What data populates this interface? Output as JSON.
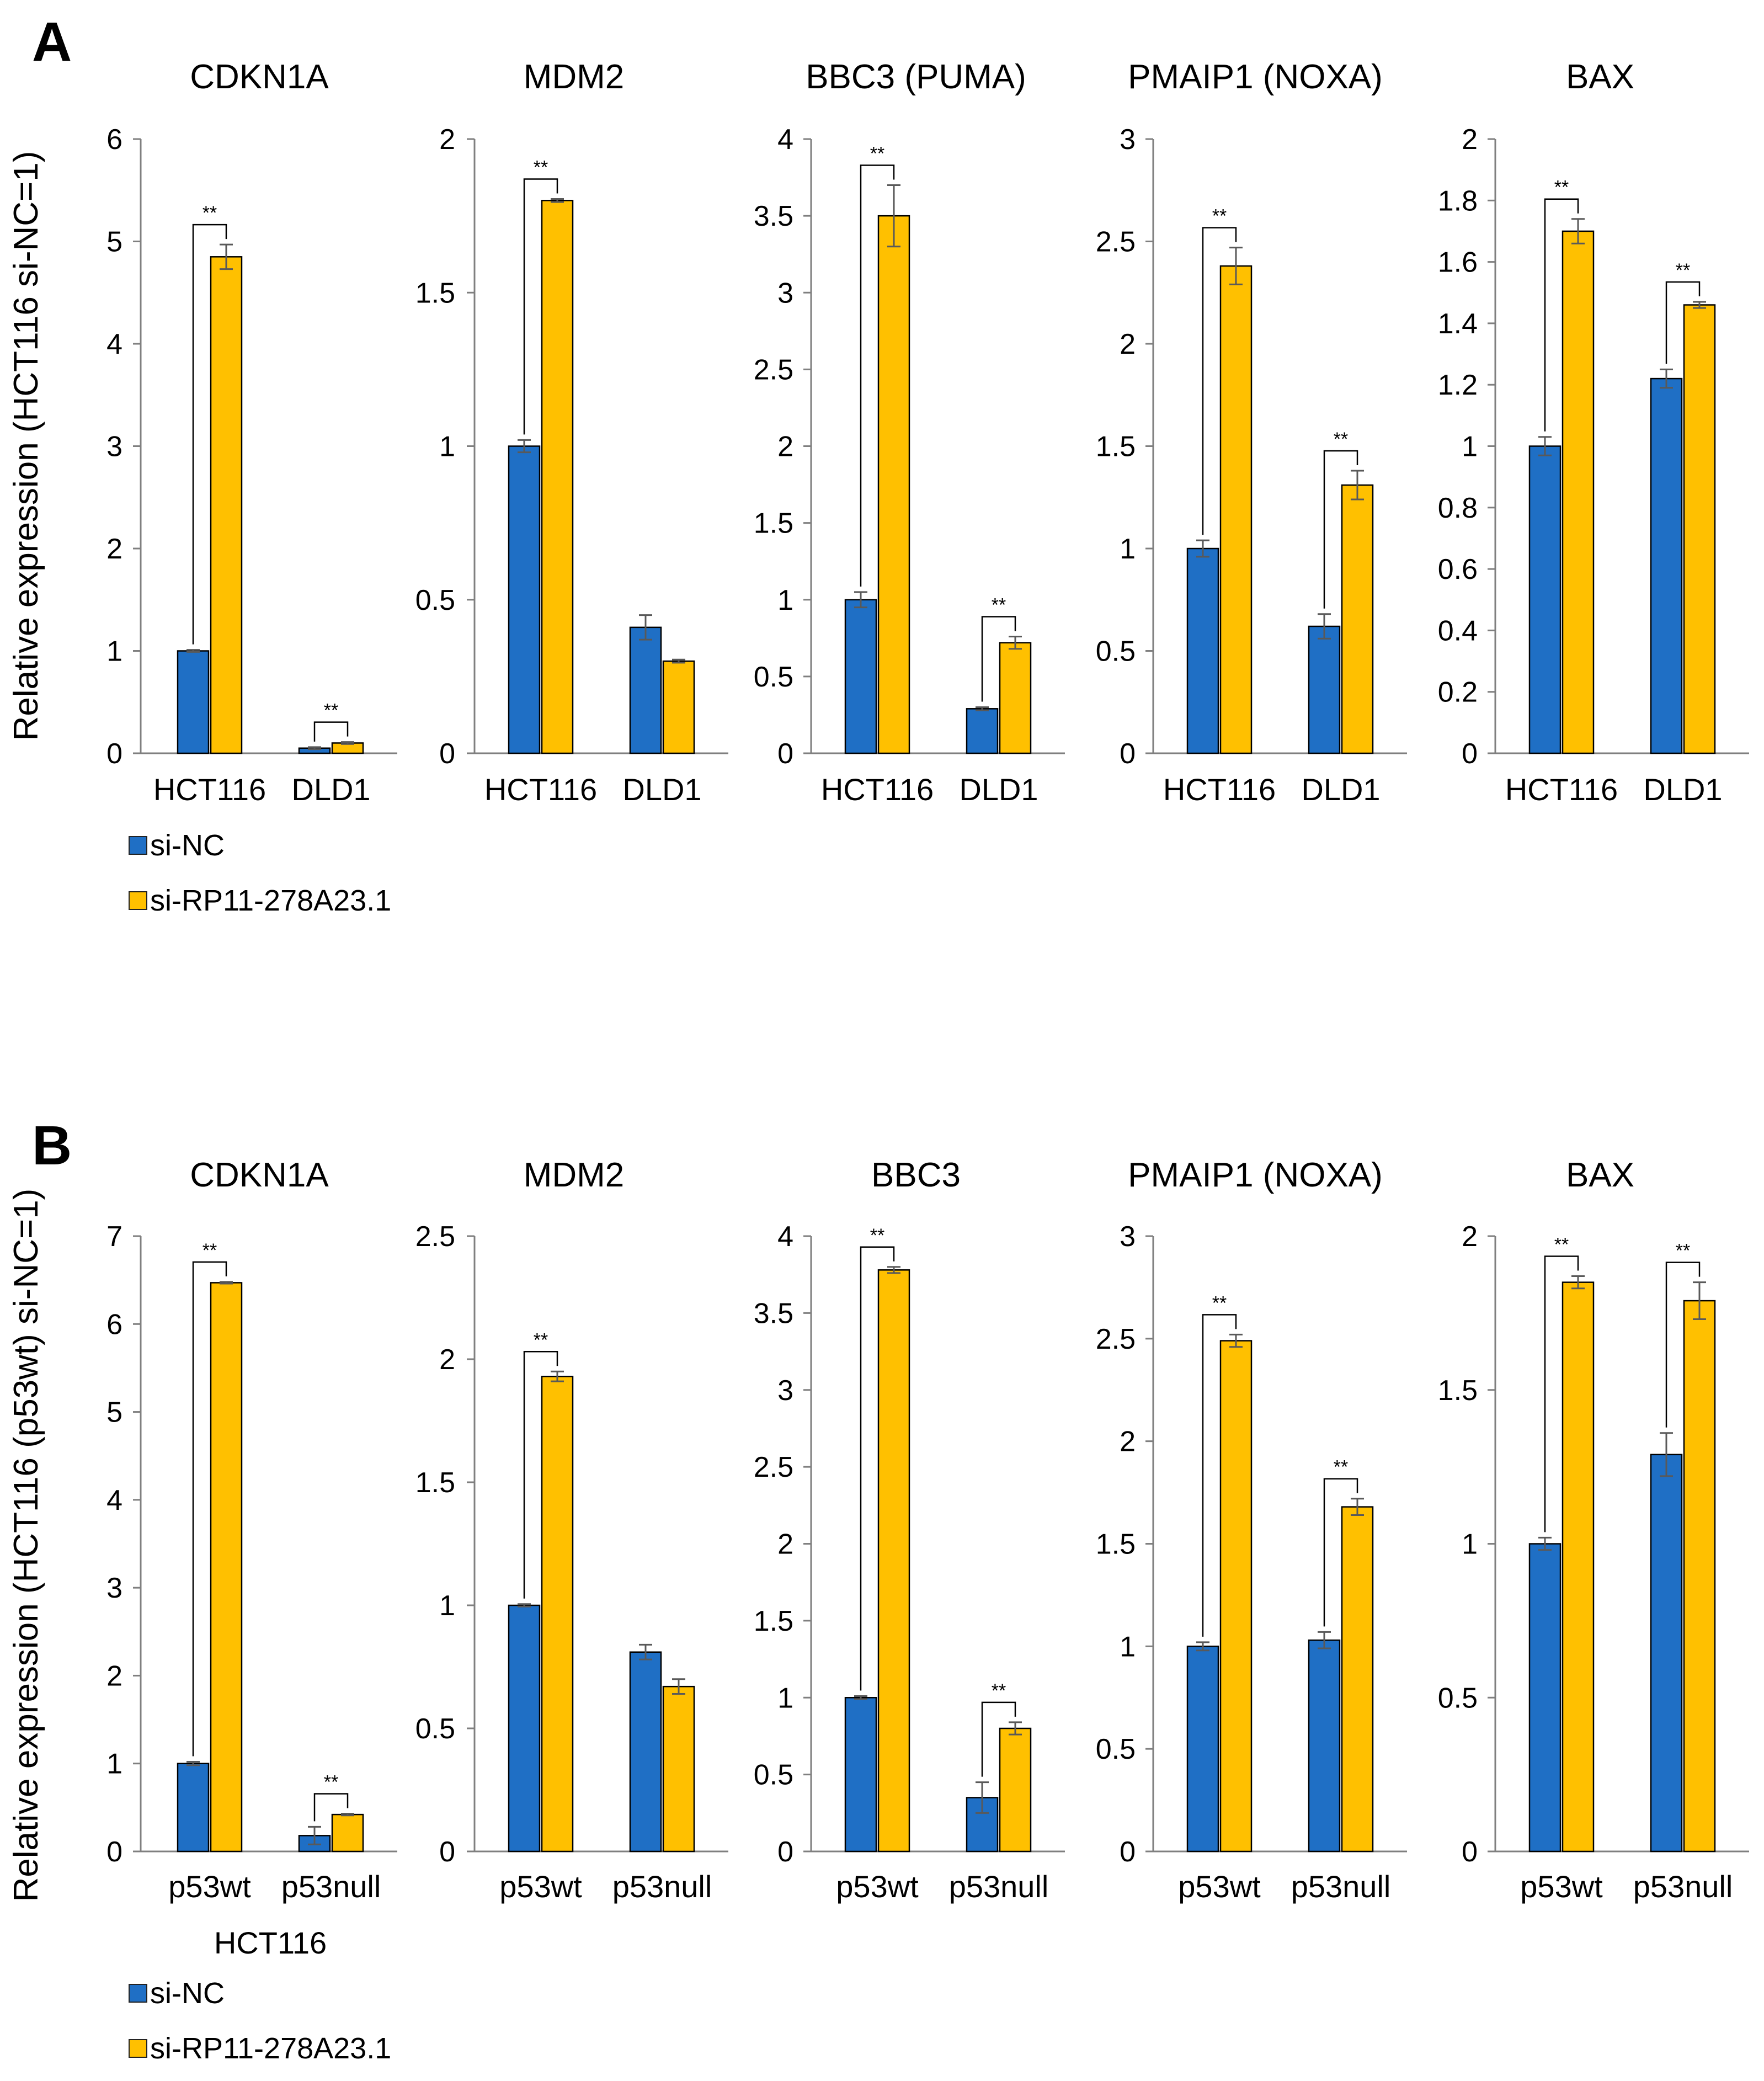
{
  "figure": {
    "panels": [
      {
        "letter": "A",
        "ylabel": "Relative expression (HCT116 si-NC=1)",
        "xsublabel": "",
        "legend": [
          {
            "label": "si-NC",
            "color": "#1f6fc5"
          },
          {
            "label": "si-RP11-278A23.1",
            "color": "#ffc000"
          }
        ]
      },
      {
        "letter": "B",
        "ylabel": "Relative expression (HCT116 (p53wt) si-NC=1)",
        "xsublabel": "HCT116",
        "legend": [
          {
            "label": "si-NC",
            "color": "#1f6fc5"
          },
          {
            "label": "si-RP11-278A23.1",
            "color": "#ffc000"
          }
        ]
      }
    ]
  },
  "chart_data": [
    {
      "panel": "A",
      "type": "bar",
      "title": "CDKN1A",
      "categories": [
        "HCT116",
        "DLD1"
      ],
      "ylim": [
        0,
        6
      ],
      "yticks": [
        "0",
        "1",
        "2",
        "3",
        "4",
        "5",
        "6"
      ],
      "series": [
        {
          "name": "si-NC",
          "values": [
            1.0,
            0.05
          ],
          "errors": [
            0.01,
            0.01
          ]
        },
        {
          "name": "si-RP11-278A23.1",
          "values": [
            4.85,
            0.1
          ],
          "errors": [
            0.12,
            0.01
          ]
        }
      ],
      "significance": [
        {
          "category": 0,
          "label": "**"
        },
        {
          "category": 1,
          "label": "**"
        }
      ]
    },
    {
      "panel": "A",
      "type": "bar",
      "title": "MDM2",
      "categories": [
        "HCT116",
        "DLD1"
      ],
      "ylim": [
        0,
        2
      ],
      "yticks": [
        "0",
        "0.5",
        "1",
        "1.5",
        "2"
      ],
      "series": [
        {
          "name": "si-NC",
          "values": [
            1.0,
            0.41
          ],
          "errors": [
            0.02,
            0.04
          ]
        },
        {
          "name": "si-RP11-278A23.1",
          "values": [
            1.8,
            0.3
          ],
          "errors": [
            0.005,
            0.005
          ]
        }
      ],
      "significance": [
        {
          "category": 0,
          "label": "**"
        }
      ]
    },
    {
      "panel": "A",
      "type": "bar",
      "title": "BBC3 (PUMA)",
      "categories": [
        "HCT116",
        "DLD1"
      ],
      "ylim": [
        0,
        4
      ],
      "yticks": [
        "0",
        "0.5",
        "1",
        "1.5",
        "2",
        "2.5",
        "3",
        "3.5",
        "4"
      ],
      "series": [
        {
          "name": "si-NC",
          "values": [
            1.0,
            0.29
          ],
          "errors": [
            0.05,
            0.01
          ]
        },
        {
          "name": "si-RP11-278A23.1",
          "values": [
            3.5,
            0.72
          ],
          "errors": [
            0.2,
            0.04
          ]
        }
      ],
      "significance": [
        {
          "category": 0,
          "label": "**"
        },
        {
          "category": 1,
          "label": "**"
        }
      ]
    },
    {
      "panel": "A",
      "type": "bar",
      "title": "PMAIP1 (NOXA)",
      "categories": [
        "HCT116",
        "DLD1"
      ],
      "ylim": [
        0,
        3
      ],
      "yticks": [
        "0",
        "0.5",
        "1",
        "1.5",
        "2",
        "2.5",
        "3"
      ],
      "series": [
        {
          "name": "si-NC",
          "values": [
            1.0,
            0.62
          ],
          "errors": [
            0.04,
            0.06
          ]
        },
        {
          "name": "si-RP11-278A23.1",
          "values": [
            2.38,
            1.31
          ],
          "errors": [
            0.09,
            0.07
          ]
        }
      ],
      "significance": [
        {
          "category": 0,
          "label": "**"
        },
        {
          "category": 1,
          "label": "**"
        }
      ]
    },
    {
      "panel": "A",
      "type": "bar",
      "title": "BAX",
      "categories": [
        "HCT116",
        "DLD1"
      ],
      "ylim": [
        0,
        2
      ],
      "yticks": [
        "0",
        "0.2",
        "0.4",
        "0.6",
        "0.8",
        "1",
        "1.2",
        "1.4",
        "1.6",
        "1.8",
        "2"
      ],
      "series": [
        {
          "name": "si-NC",
          "values": [
            1.0,
            1.22
          ],
          "errors": [
            0.03,
            0.03
          ]
        },
        {
          "name": "si-RP11-278A23.1",
          "values": [
            1.7,
            1.46
          ],
          "errors": [
            0.04,
            0.01
          ]
        }
      ],
      "significance": [
        {
          "category": 0,
          "label": "**"
        },
        {
          "category": 1,
          "label": "**"
        }
      ]
    },
    {
      "panel": "B",
      "type": "bar",
      "title": "CDKN1A",
      "categories": [
        "p53wt",
        "p53null"
      ],
      "ylim": [
        0,
        7
      ],
      "yticks": [
        "0",
        "1",
        "2",
        "3",
        "4",
        "5",
        "6",
        "7"
      ],
      "series": [
        {
          "name": "si-NC",
          "values": [
            1.0,
            0.18
          ],
          "errors": [
            0.02,
            0.1
          ]
        },
        {
          "name": "si-RP11-278A23.1",
          "values": [
            6.47,
            0.42
          ],
          "errors": [
            0.01,
            0.01
          ]
        }
      ],
      "significance": [
        {
          "category": 0,
          "label": "**"
        },
        {
          "category": 1,
          "label": "**"
        }
      ]
    },
    {
      "panel": "B",
      "type": "bar",
      "title": "MDM2",
      "categories": [
        "p53wt",
        "p53null"
      ],
      "ylim": [
        0,
        2.5
      ],
      "yticks": [
        "0",
        "0.5",
        "1",
        "1.5",
        "2",
        "2.5"
      ],
      "series": [
        {
          "name": "si-NC",
          "values": [
            1.0,
            0.81
          ],
          "errors": [
            0.005,
            0.03
          ]
        },
        {
          "name": "si-RP11-278A23.1",
          "values": [
            1.93,
            0.67
          ],
          "errors": [
            0.02,
            0.03
          ]
        }
      ],
      "significance": [
        {
          "category": 0,
          "label": "**"
        }
      ]
    },
    {
      "panel": "B",
      "type": "bar",
      "title": "BBC3",
      "categories": [
        "p53wt",
        "p53null"
      ],
      "ylim": [
        0,
        4
      ],
      "yticks": [
        "0",
        "0.5",
        "1",
        "1.5",
        "2",
        "2.5",
        "3",
        "3.5",
        "4"
      ],
      "series": [
        {
          "name": "si-NC",
          "values": [
            1.0,
            0.35
          ],
          "errors": [
            0.01,
            0.1
          ]
        },
        {
          "name": "si-RP11-278A23.1",
          "values": [
            3.78,
            0.8
          ],
          "errors": [
            0.02,
            0.04
          ]
        }
      ],
      "significance": [
        {
          "category": 0,
          "label": "**"
        },
        {
          "category": 1,
          "label": "**"
        }
      ]
    },
    {
      "panel": "B",
      "type": "bar",
      "title": "PMAIP1 (NOXA)",
      "categories": [
        "p53wt",
        "p53null"
      ],
      "ylim": [
        0,
        3
      ],
      "yticks": [
        "0",
        "0.5",
        "1",
        "1.5",
        "2",
        "2.5",
        "3"
      ],
      "series": [
        {
          "name": "si-NC",
          "values": [
            1.0,
            1.03
          ],
          "errors": [
            0.02,
            0.04
          ]
        },
        {
          "name": "si-RP11-278A23.1",
          "values": [
            2.49,
            1.68
          ],
          "errors": [
            0.03,
            0.04
          ]
        }
      ],
      "significance": [
        {
          "category": 0,
          "label": "**"
        },
        {
          "category": 1,
          "label": "**"
        }
      ]
    },
    {
      "panel": "B",
      "type": "bar",
      "title": "BAX",
      "categories": [
        "p53wt",
        "p53null"
      ],
      "ylim": [
        0,
        2
      ],
      "yticks": [
        "0",
        "0.5",
        "1",
        "1.5",
        "2"
      ],
      "series": [
        {
          "name": "si-NC",
          "values": [
            1.0,
            1.29
          ],
          "errors": [
            0.02,
            0.07
          ]
        },
        {
          "name": "si-RP11-278A23.1",
          "values": [
            1.85,
            1.79
          ],
          "errors": [
            0.02,
            0.06
          ]
        }
      ],
      "significance": [
        {
          "category": 0,
          "label": "**"
        },
        {
          "category": 1,
          "label": "**"
        }
      ]
    }
  ]
}
